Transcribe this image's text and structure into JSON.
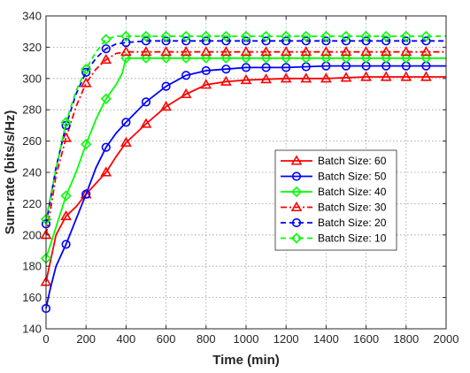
{
  "chart_data": {
    "type": "line",
    "title": "",
    "xlabel": "Time (min)",
    "ylabel": "Sum-rate (bits/s/Hz)",
    "xlim": [
      0,
      2000
    ],
    "ylim": [
      140,
      340
    ],
    "xticks": [
      0,
      200,
      400,
      600,
      800,
      1000,
      1200,
      1400,
      1600,
      1800,
      2000
    ],
    "yticks": [
      140,
      160,
      180,
      200,
      220,
      240,
      260,
      280,
      300,
      320,
      340
    ],
    "grid": true,
    "legend_position": "center-right",
    "series": [
      {
        "name": "Batch Size: 60",
        "color": "#ff0000",
        "dash": "solid",
        "marker": "triangle",
        "x": [
          0,
          50,
          100,
          150,
          200,
          250,
          300,
          350,
          400,
          500,
          600,
          700,
          800,
          900,
          1000,
          1200,
          1400,
          1600,
          1800,
          2000
        ],
        "y": [
          170,
          200,
          212,
          218,
          226,
          233,
          240,
          250,
          259,
          271,
          282,
          290,
          296,
          298,
          299,
          300,
          300,
          301,
          301,
          301
        ],
        "marker_x": [
          0,
          100,
          200,
          300,
          400,
          500,
          600,
          700,
          800,
          900,
          1000,
          1100,
          1200,
          1300,
          1400,
          1500,
          1600,
          1700,
          1800,
          1900
        ]
      },
      {
        "name": "Batch Size: 50",
        "color": "#0000ff",
        "dash": "solid",
        "marker": "circle",
        "x": [
          0,
          20,
          50,
          100,
          150,
          200,
          250,
          300,
          350,
          400,
          500,
          600,
          700,
          800,
          900,
          1000,
          1200,
          1400,
          1600,
          1800,
          2000
        ],
        "y": [
          153,
          165,
          180,
          194,
          210,
          226,
          243,
          256,
          265,
          272,
          285,
          295,
          302,
          305,
          306,
          307,
          307,
          308,
          308,
          308,
          308
        ],
        "marker_x": [
          0,
          100,
          200,
          300,
          400,
          500,
          600,
          700,
          800,
          900,
          1000,
          1100,
          1200,
          1300,
          1400,
          1500,
          1600,
          1700,
          1800,
          1900
        ]
      },
      {
        "name": "Batch Size: 40",
        "color": "#00ff00",
        "dash": "solid",
        "marker": "diamond",
        "x": [
          0,
          50,
          100,
          150,
          200,
          250,
          300,
          350,
          380,
          400,
          500,
          600,
          800,
          1000,
          1200,
          1400,
          1600,
          1800,
          2000
        ],
        "y": [
          185,
          205,
          225,
          240,
          258,
          274,
          287,
          296,
          303,
          313,
          313,
          313,
          313,
          313,
          313,
          313,
          313,
          313,
          313
        ],
        "marker_x": [
          0,
          100,
          200,
          300,
          400,
          500,
          600,
          700,
          800,
          900,
          1000,
          1100,
          1200,
          1300,
          1400,
          1500,
          1600,
          1700,
          1800,
          1900
        ]
      },
      {
        "name": "Batch Size: 30",
        "color": "#ff0000",
        "dash": "dashdot",
        "marker": "triangle",
        "x": [
          0,
          25,
          50,
          100,
          150,
          200,
          250,
          300,
          350,
          400,
          500,
          600,
          800,
          1000,
          1200,
          1400,
          1600,
          1800,
          2000
        ],
        "y": [
          200,
          218,
          238,
          262,
          282,
          297,
          306,
          312,
          316,
          317,
          317,
          317,
          317,
          317,
          317,
          317,
          317,
          317,
          317
        ],
        "marker_x": [
          0,
          100,
          200,
          300,
          400,
          500,
          600,
          700,
          800,
          900,
          1000,
          1100,
          1200,
          1300,
          1400,
          1500,
          1600,
          1700,
          1800,
          1900
        ]
      },
      {
        "name": "Batch Size: 20",
        "color": "#0000ff",
        "dash": "dashed",
        "marker": "circle",
        "x": [
          0,
          25,
          50,
          100,
          150,
          200,
          250,
          300,
          350,
          400,
          500,
          600,
          800,
          1000,
          1200,
          1400,
          1600,
          1800,
          2000
        ],
        "y": [
          207,
          225,
          243,
          270,
          290,
          304,
          313,
          319,
          322,
          323,
          324,
          324,
          324,
          324,
          324,
          324,
          324,
          324,
          324
        ],
        "marker_x": [
          0,
          100,
          200,
          300,
          400,
          500,
          600,
          700,
          800,
          900,
          1000,
          1100,
          1200,
          1300,
          1400,
          1500,
          1600,
          1700,
          1800,
          1900
        ]
      },
      {
        "name": "Batch Size: 10",
        "color": "#00ff00",
        "dash": "dashed",
        "marker": "diamond",
        "x": [
          0,
          25,
          50,
          100,
          150,
          200,
          250,
          300,
          350,
          400,
          500,
          600,
          800,
          1000,
          1200,
          1400,
          1600,
          1800,
          2000
        ],
        "y": [
          210,
          226,
          242,
          272,
          292,
          306,
          317,
          325,
          327,
          327,
          327,
          327,
          327,
          327,
          327,
          327,
          327,
          327,
          327
        ],
        "marker_x": [
          0,
          100,
          200,
          300,
          400,
          500,
          600,
          700,
          800,
          900,
          1000,
          1100,
          1200,
          1300,
          1400,
          1500,
          1600,
          1700,
          1800,
          1900
        ]
      }
    ]
  }
}
